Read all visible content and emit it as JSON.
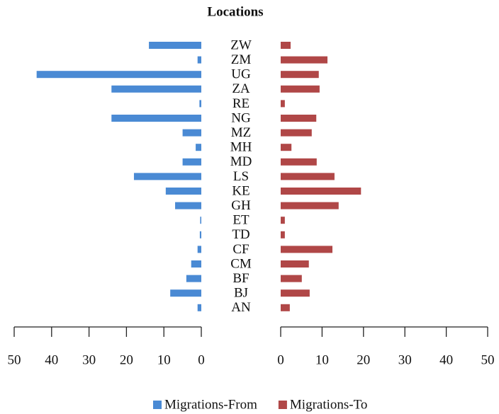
{
  "chart_data": {
    "type": "butterfly",
    "title": "Locations",
    "categories": [
      "ZW",
      "ZM",
      "UG",
      "ZA",
      "RE",
      "NG",
      "MZ",
      "MH",
      "MD",
      "LS",
      "KE",
      "GH",
      "ET",
      "TD",
      "CF",
      "CM",
      "BF",
      "BJ",
      "AN"
    ],
    "series": [
      {
        "name": "Migrations-From",
        "color": "#4a8ad4",
        "values": [
          14,
          1,
          44,
          24,
          0.5,
          24,
          5,
          1.5,
          5,
          18,
          9.5,
          7,
          0.3,
          0.4,
          1,
          2.7,
          4,
          8.3,
          1
        ]
      },
      {
        "name": "Migrations-To",
        "color": "#b04747",
        "values": [
          2.4,
          11.3,
          9.2,
          9.4,
          1,
          8.6,
          7.5,
          2.6,
          8.7,
          13,
          19.4,
          14,
          1,
          1,
          12.5,
          6.8,
          5.1,
          7,
          2.2
        ]
      }
    ],
    "xlim": [
      0,
      50
    ],
    "xticks": [
      0,
      10,
      20,
      30,
      40,
      50
    ]
  }
}
